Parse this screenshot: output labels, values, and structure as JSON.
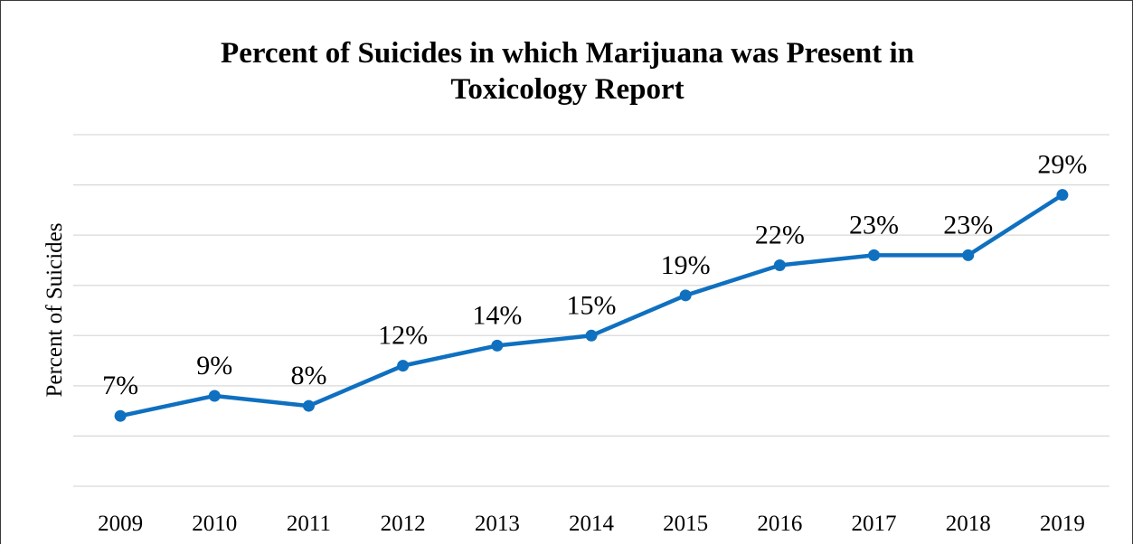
{
  "chart_data": {
    "type": "line",
    "title_line1": "Percent of Suicides in which Marijuana was Present in",
    "title_line2": "Toxicology Report",
    "xlabel": "",
    "ylabel": "Percent of Suicides",
    "categories": [
      "2009",
      "2010",
      "2011",
      "2012",
      "2013",
      "2014",
      "2015",
      "2016",
      "2017",
      "2018",
      "2019"
    ],
    "series": [
      {
        "values": [
          7,
          9,
          8,
          12,
          14,
          15,
          19,
          22,
          23,
          23,
          29
        ],
        "value_labels": [
          "7%",
          "9%",
          "8%",
          "12%",
          "14%",
          "15%",
          "19%",
          "22%",
          "23%",
          "23%",
          "29%"
        ],
        "color": "#0f70c0"
      }
    ],
    "ylim": [
      0,
      35
    ],
    "y_tick_step": 5,
    "y_tick_labels_shown": false,
    "grid": "horizontal",
    "gridline_color": "#d9d9d9",
    "legend": "none"
  }
}
